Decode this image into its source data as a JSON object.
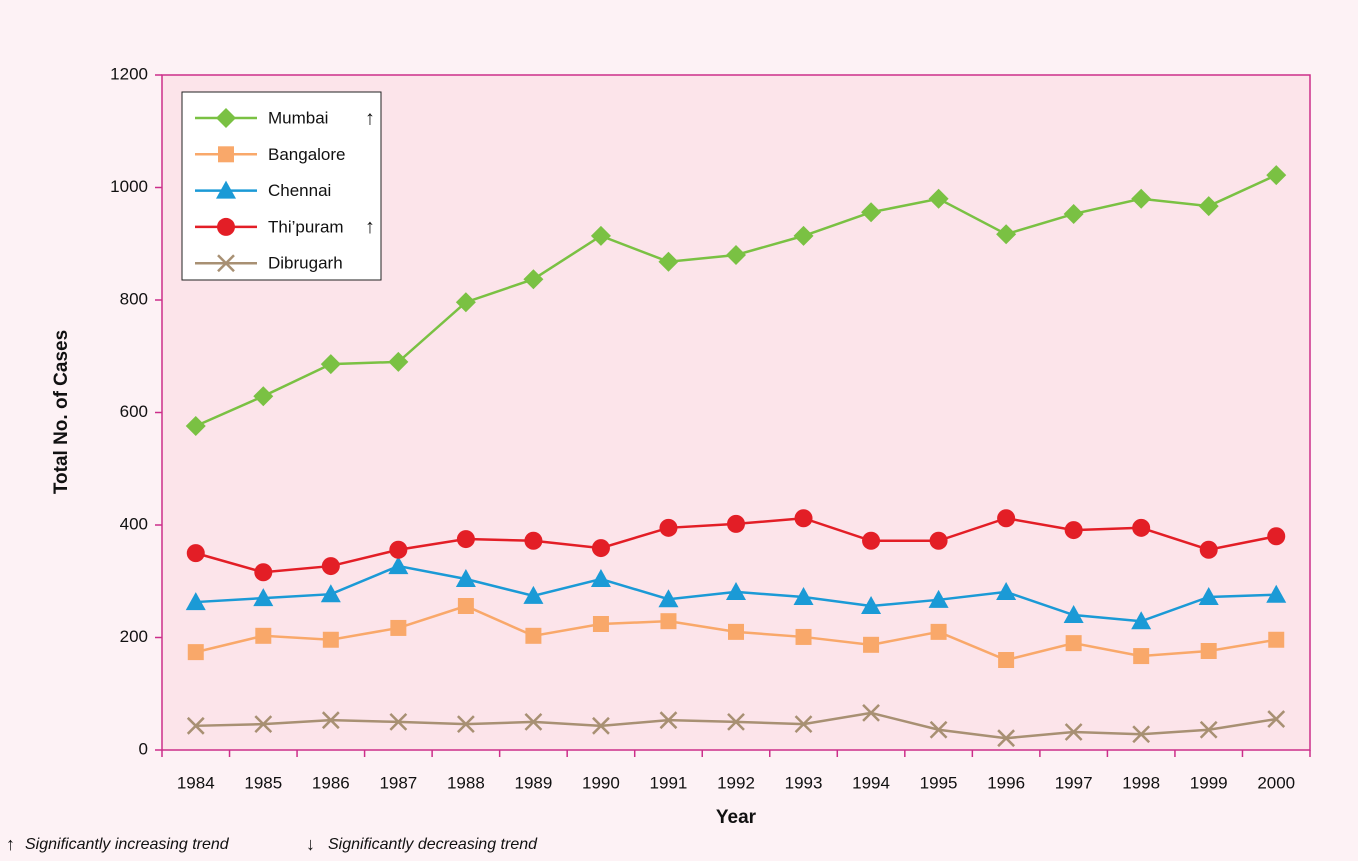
{
  "chart_data": {
    "type": "line",
    "x_label": "Year",
    "y_label": "Total No. of Cases",
    "categories": [
      "1984",
      "1985",
      "1986",
      "1987",
      "1988",
      "1989",
      "1990",
      "1991",
      "1992",
      "1993",
      "1994",
      "1995",
      "1996",
      "1997",
      "1998",
      "1999",
      "2000"
    ],
    "series": [
      {
        "name": "Mumbai",
        "color": "#7ac143",
        "marker": "diamond",
        "trend": "↑",
        "values": [
          576,
          629,
          686,
          690,
          796,
          837,
          914,
          868,
          880,
          914,
          956,
          980,
          917,
          953,
          980,
          967,
          1022
        ]
      },
      {
        "name": "Bangalore",
        "color": "#f9a86a",
        "marker": "square",
        "values": [
          174,
          203,
          196,
          217,
          256,
          203,
          224,
          229,
          210,
          201,
          187,
          210,
          160,
          190,
          167,
          176,
          196
        ]
      },
      {
        "name": "Chennai",
        "color": "#1b9ad6",
        "marker": "triangle",
        "values": [
          263,
          270,
          277,
          327,
          304,
          274,
          304,
          268,
          281,
          272,
          256,
          267,
          281,
          240,
          229,
          272,
          276
        ]
      },
      {
        "name": "Thi’puram",
        "color": "#e31e26",
        "marker": "circle",
        "trend": "↑",
        "values": [
          350,
          316,
          327,
          356,
          375,
          372,
          359,
          395,
          402,
          412,
          372,
          372,
          412,
          391,
          395,
          356,
          380
        ]
      },
      {
        "name": "Dibrugarh",
        "color": "#a89073",
        "marker": "x",
        "values": [
          43,
          46,
          53,
          50,
          46,
          50,
          43,
          53,
          50,
          46,
          66,
          36,
          21,
          32,
          28,
          36,
          55
        ]
      }
    ],
    "ylim": [
      0,
      1200
    ],
    "yticks": [
      0,
      200,
      400,
      600,
      800,
      1000,
      1200
    ],
    "legend": "upper left",
    "footnotes": [
      {
        "symbol": "↑",
        "text": "Significantly increasing trend"
      },
      {
        "symbol": "↓",
        "text": "Significantly decreasing trend"
      }
    ]
  }
}
